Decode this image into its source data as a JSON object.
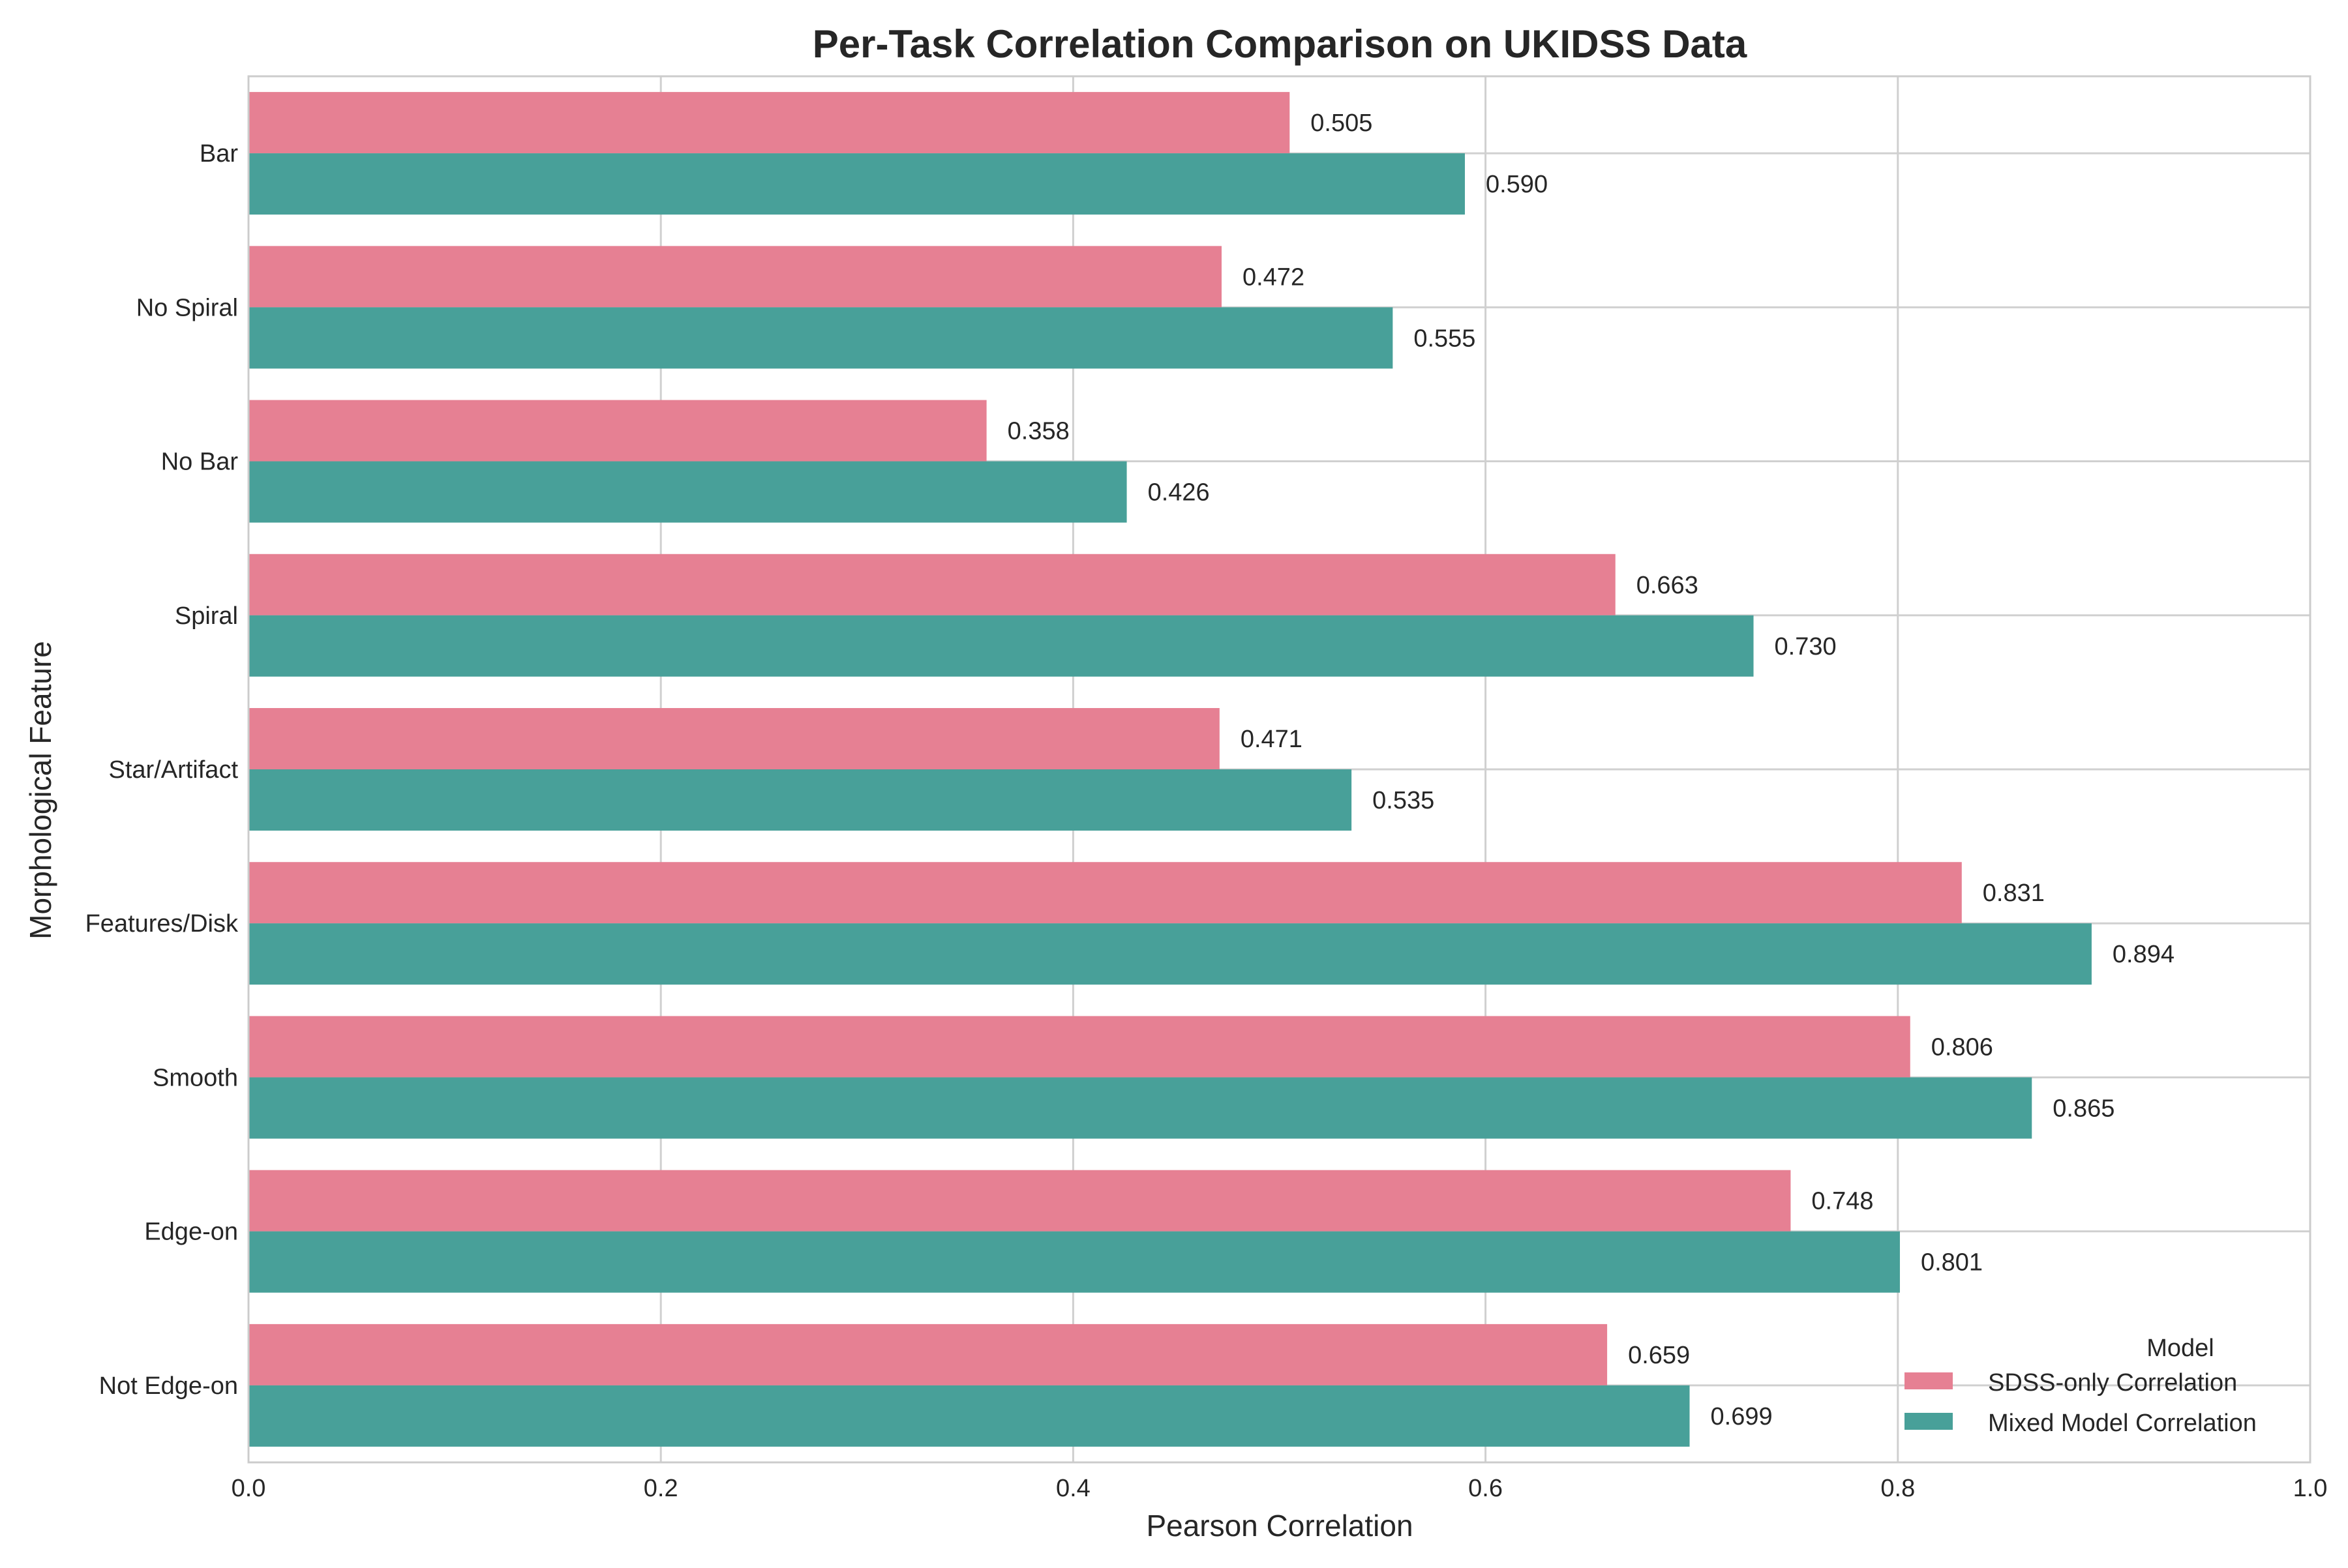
{
  "chart_data": {
    "type": "bar",
    "orientation": "horizontal",
    "title": "Per-Task Correlation Comparison on UKIDSS Data",
    "xlabel": "Pearson Correlation",
    "ylabel": "Morphological Feature",
    "xlim": [
      0,
      1.0
    ],
    "xticks": [
      "0.0",
      "0.2",
      "0.4",
      "0.6",
      "0.8",
      "1.0"
    ],
    "grid": true,
    "legend_title": "Model",
    "legend_position": "lower-right",
    "categories": [
      "Bar",
      "No Spiral",
      "No Bar",
      "Spiral",
      "Star/Artifact",
      "Features/Disk",
      "Smooth",
      "Edge-on",
      "Not Edge-on"
    ],
    "series": [
      {
        "name": "SDSS-only Correlation",
        "color": "#e68093",
        "values": [
          0.505,
          0.472,
          0.358,
          0.663,
          0.471,
          0.831,
          0.806,
          0.748,
          0.659
        ],
        "labels": [
          "0.505",
          "0.472",
          "0.358",
          "0.663",
          "0.471",
          "0.831",
          "0.806",
          "0.748",
          "0.659"
        ]
      },
      {
        "name": "Mixed Model Correlation",
        "color": "#48a099",
        "values": [
          0.59,
          0.555,
          0.426,
          0.73,
          0.535,
          0.894,
          0.865,
          0.801,
          0.699
        ],
        "labels": [
          "0.590",
          "0.555",
          "0.426",
          "0.730",
          "0.535",
          "0.894",
          "0.865",
          "0.801",
          "0.699"
        ]
      }
    ]
  }
}
